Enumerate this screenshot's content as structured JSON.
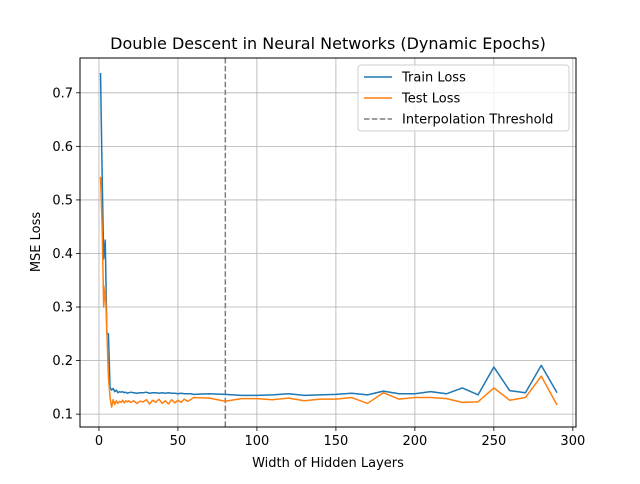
{
  "chart_data": {
    "type": "line",
    "title": "Double Descent in Neural Networks (Dynamic Epochs)",
    "xlabel": "Width of Hidden Layers",
    "ylabel": "MSE Loss",
    "xlim": [
      -12,
      302
    ],
    "ylim": [
      0.076,
      0.765
    ],
    "xticks": [
      0,
      50,
      100,
      150,
      200,
      250,
      300
    ],
    "xtick_labels": [
      "0",
      "50",
      "100",
      "150",
      "200",
      "250",
      "300"
    ],
    "yticks": [
      0.1,
      0.2,
      0.3,
      0.4,
      0.5,
      0.6,
      0.7
    ],
    "ytick_labels": [
      "0.1",
      "0.2",
      "0.3",
      "0.4",
      "0.5",
      "0.6",
      "0.7"
    ],
    "grid": true,
    "legend_position": "top-right",
    "threshold": {
      "name": "Interpolation Threshold",
      "x": 80,
      "color": "#7f7f7f",
      "style": "dashed"
    },
    "series": [
      {
        "name": "Train Loss",
        "color": "#1f77b4",
        "x": [
          1,
          2,
          3,
          4,
          5,
          6,
          7,
          8,
          9,
          10,
          11,
          12,
          13,
          14,
          15,
          16,
          17,
          18,
          19,
          20,
          22,
          24,
          26,
          28,
          30,
          32,
          34,
          36,
          38,
          40,
          42,
          44,
          46,
          48,
          50,
          52,
          54,
          56,
          58,
          60,
          70,
          80,
          90,
          100,
          110,
          120,
          130,
          140,
          150,
          160,
          170,
          180,
          190,
          200,
          210,
          220,
          230,
          240,
          250,
          260,
          270,
          280,
          290
        ],
        "values": [
          0.737,
          0.55,
          0.39,
          0.425,
          0.25,
          0.25,
          0.15,
          0.145,
          0.148,
          0.142,
          0.145,
          0.14,
          0.142,
          0.141,
          0.142,
          0.14,
          0.141,
          0.139,
          0.14,
          0.141,
          0.14,
          0.139,
          0.14,
          0.14,
          0.141,
          0.139,
          0.14,
          0.14,
          0.139,
          0.14,
          0.139,
          0.14,
          0.139,
          0.139,
          0.138,
          0.139,
          0.138,
          0.138,
          0.138,
          0.137,
          0.138,
          0.137,
          0.135,
          0.135,
          0.136,
          0.138,
          0.135,
          0.136,
          0.137,
          0.139,
          0.136,
          0.143,
          0.138,
          0.138,
          0.142,
          0.138,
          0.149,
          0.136,
          0.188,
          0.144,
          0.14,
          0.191,
          0.14
        ]
      },
      {
        "name": "Test Loss",
        "color": "#ff7f0e",
        "x": [
          1,
          2,
          3,
          4,
          5,
          6,
          7,
          8,
          9,
          10,
          11,
          12,
          13,
          14,
          15,
          16,
          17,
          18,
          19,
          20,
          22,
          24,
          26,
          28,
          30,
          32,
          34,
          36,
          38,
          40,
          42,
          44,
          46,
          48,
          50,
          52,
          54,
          56,
          58,
          60,
          70,
          80,
          90,
          100,
          110,
          120,
          130,
          140,
          150,
          160,
          170,
          180,
          190,
          200,
          210,
          220,
          230,
          240,
          250,
          260,
          270,
          280,
          290
        ],
        "values": [
          0.543,
          0.45,
          0.3,
          0.34,
          0.255,
          0.17,
          0.132,
          0.113,
          0.127,
          0.118,
          0.125,
          0.12,
          0.124,
          0.122,
          0.126,
          0.121,
          0.125,
          0.123,
          0.125,
          0.122,
          0.125,
          0.12,
          0.124,
          0.123,
          0.127,
          0.119,
          0.126,
          0.122,
          0.128,
          0.12,
          0.125,
          0.119,
          0.127,
          0.121,
          0.126,
          0.122,
          0.128,
          0.124,
          0.127,
          0.131,
          0.13,
          0.124,
          0.129,
          0.129,
          0.127,
          0.13,
          0.125,
          0.128,
          0.128,
          0.131,
          0.12,
          0.14,
          0.128,
          0.131,
          0.131,
          0.129,
          0.122,
          0.123,
          0.149,
          0.126,
          0.131,
          0.171,
          0.117
        ]
      }
    ]
  }
}
